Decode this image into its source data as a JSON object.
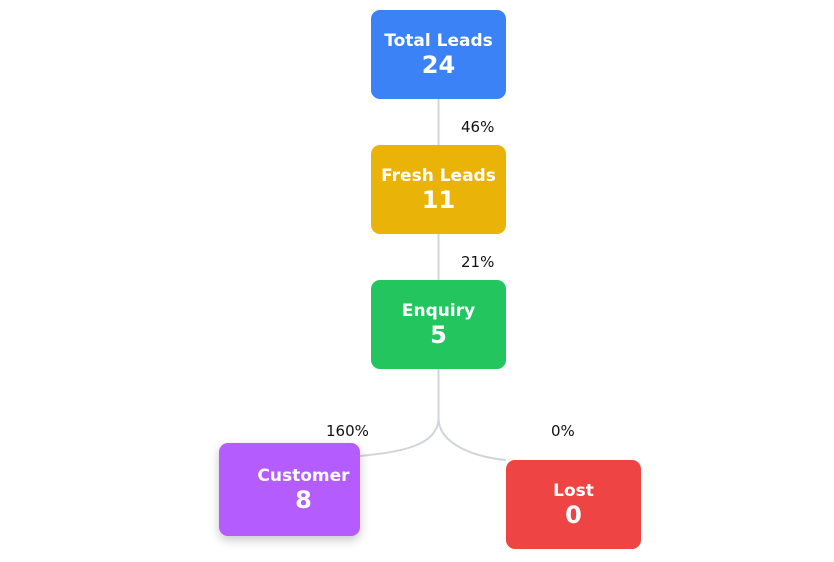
{
  "nodes": {
    "total": {
      "label": "Total Leads",
      "value": "24",
      "color": "#3b82f6"
    },
    "fresh": {
      "label": "Fresh Leads",
      "value": "11",
      "color": "#eab308"
    },
    "enquiry": {
      "label": "Enquiry",
      "value": "5",
      "color": "#22c55e"
    },
    "customer": {
      "label": "Customer",
      "value": "8",
      "color": "#b55cff"
    },
    "lost": {
      "label": "Lost",
      "value": "0",
      "color": "#ef4444"
    }
  },
  "edges": {
    "total_to_fresh": {
      "percent": "46%"
    },
    "fresh_to_enquiry": {
      "percent": "21%"
    },
    "enquiry_to_customer": {
      "percent": "160%"
    },
    "enquiry_to_lost": {
      "percent": "0%"
    }
  },
  "connector_color": "#d1d5db"
}
